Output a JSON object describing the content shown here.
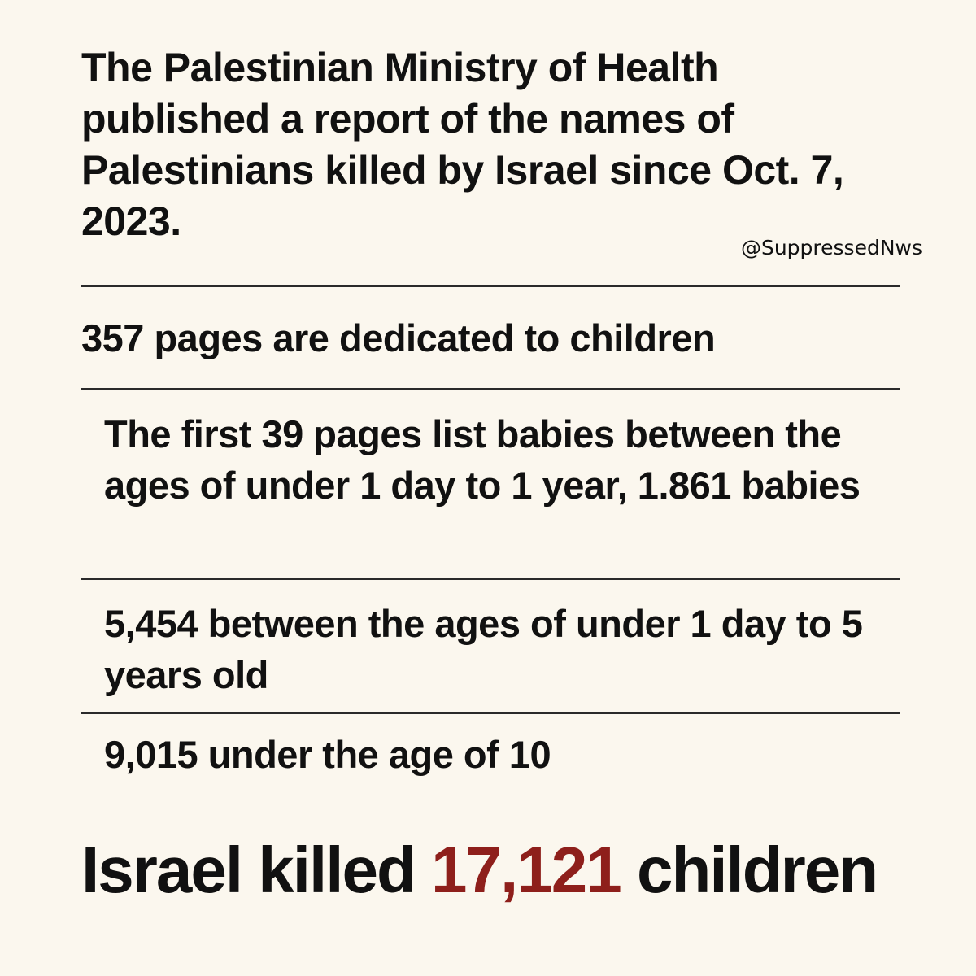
{
  "headline": "The Palestinian Ministry of Health published a report of the names of Palestinians killed by Israel since Oct. 7, 2023.",
  "handle": "@SuppressedNws",
  "stats": {
    "pages": "357 pages are dedicated to children",
    "babies": "The first 39 pages list babies between the ages of under 1 day to 1 year, 1.861 babies",
    "under_five": "5,454 between the ages of under 1 day to 5 years old",
    "under_ten": "9,015 under the age of 10"
  },
  "conclusion": {
    "before": "Israel killed ",
    "number": "17,121",
    "after": " children"
  },
  "colors": {
    "background": "#fbf7ee",
    "text": "#111111",
    "accent": "#8e1f1b"
  }
}
